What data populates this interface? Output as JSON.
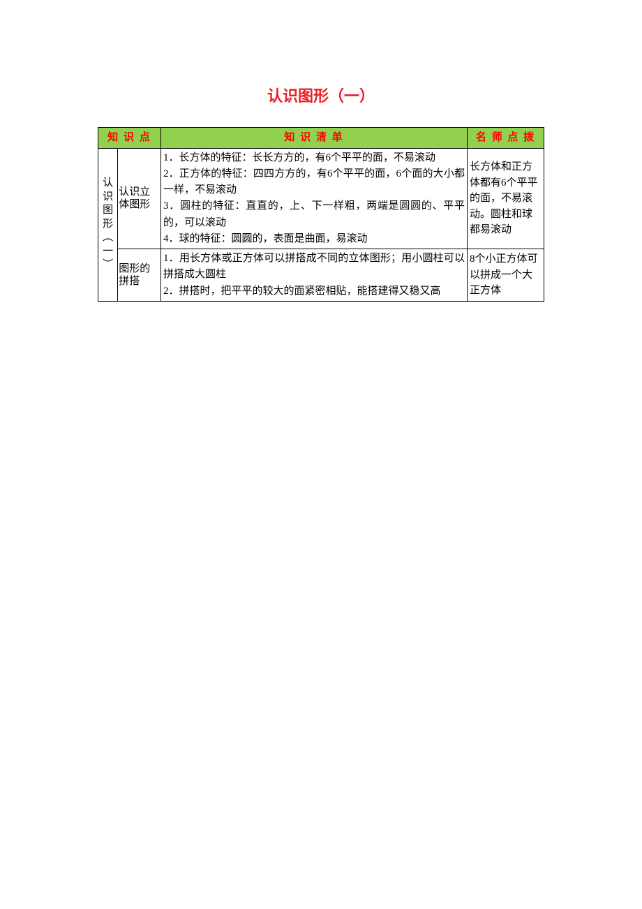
{
  "title": "认识图形（一）",
  "table": {
    "headers": {
      "col1": "知 识 点",
      "col2": "知 识 清 单",
      "col3": "名 师 点 拨"
    },
    "vertical_label": "认识图形︵一︶",
    "rows": [
      {
        "sub_label": "认识立体图形",
        "content": "1．长方体的特征：长长方方的，有6个平平的面，不易滚动\n2．正方体的特征：四四方方的，有6个平平的面，6个面的大小都一样，不易滚动\n3．圆柱的特征：直直的，上、下一样粗，两端是圆圆的、平平的，可以滚动\n4．球的特征：圆圆的，表面是曲面，易滚动",
        "tips": "长方体和正方体都有6个平平的面，不易滚动。圆柱和球都易滚动"
      },
      {
        "sub_label": "图形的拼搭",
        "content": "1．用长方体或正方体可以拼搭成不同的立体图形；用小圆柱可以拼搭成大圆柱\n2．拼搭时，把平平的较大的面紧密相贴，能搭建得又稳又高",
        "tips": "8个小正方体可以拼成一个大正方体"
      }
    ]
  },
  "styles": {
    "title_color": "#ed1c24",
    "header_bg": "#92d050",
    "header_text_color": "#ff0000",
    "border_color": "#000000",
    "body_bg": "#ffffff"
  }
}
